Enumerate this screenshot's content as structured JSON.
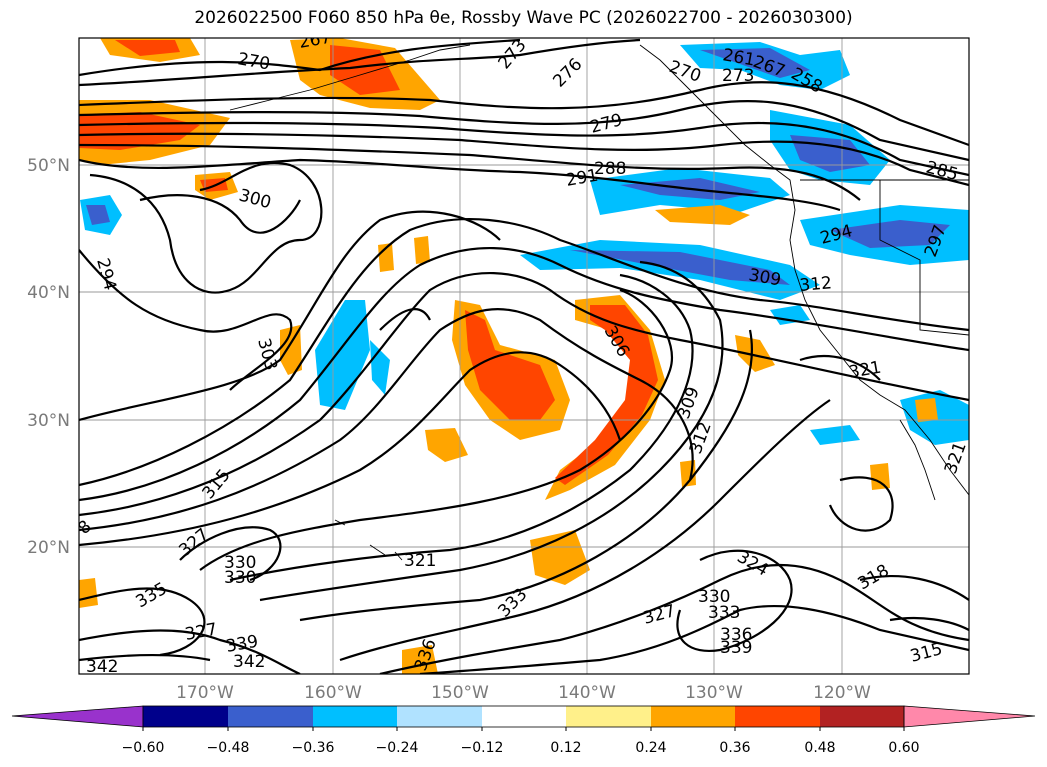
{
  "title": "2026022500 F060 850 hPa θe, Rossby Wave PC (2026022700 - 2026030300)",
  "lat_labels": [
    "50°N",
    "40°N",
    "30°N",
    "20°N"
  ],
  "lon_labels": [
    "170°W",
    "160°W",
    "150°W",
    "140°W",
    "130°W",
    "120°W"
  ],
  "colorbar": {
    "colors": [
      "#9932cc",
      "#00008b",
      "#3a5fcd",
      "#00bfff",
      "#b0e2ff",
      "#ffffff",
      "#fff08a",
      "#ffa500",
      "#ff4500",
      "#b22222",
      "#ff88aa"
    ],
    "tick_labels": [
      "−0.60",
      "−0.48",
      "−0.36",
      "−0.24",
      "−0.12",
      "0.12",
      "0.24",
      "0.36",
      "0.48",
      "0.60"
    ]
  },
  "contour_labels": [
    "270",
    "267",
    "273",
    "276",
    "261",
    "270",
    "273",
    "267",
    "258",
    "279",
    "288",
    "291",
    "285",
    "300",
    "294",
    "294",
    "297",
    "309",
    "312",
    "303",
    "306",
    "321",
    "309",
    "312",
    "315",
    "327",
    "321",
    "324",
    "318",
    "330",
    "330",
    "330",
    "333",
    "327",
    "333",
    "336",
    "339",
    "315",
    "339",
    "342",
    "342",
    "336",
    "327",
    "335",
    "321",
    "8"
  ]
}
